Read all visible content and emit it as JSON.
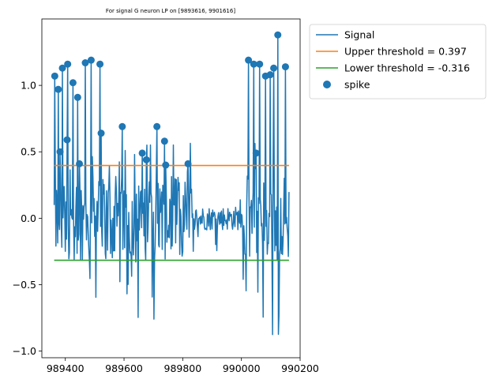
{
  "chart_data": {
    "type": "line",
    "title": "For signal G neuron LP on [9893616, 9901616]",
    "xlabel": "",
    "ylabel": "",
    "xlim": [
      989320,
      990200
    ],
    "ylim": [
      -1.05,
      1.5
    ],
    "x_ticks": [
      989400,
      989600,
      989800,
      990000,
      990200
    ],
    "y_ticks": [
      -1.0,
      -0.5,
      0.0,
      0.5,
      1.0
    ],
    "grid": false,
    "legend_position": "outside-top-right",
    "signal_range": [
      989362,
      990162
    ],
    "series": [
      {
        "name": "Signal",
        "kind": "line",
        "color": "#1f77b4"
      },
      {
        "name": "Upper threshold = 0.397",
        "kind": "hline",
        "y": 0.397,
        "color": "#ff7f0e"
      },
      {
        "name": "Lower threshold = -0.316",
        "kind": "hline",
        "y": -0.316,
        "color": "#2ca02c"
      },
      {
        "name": "spike",
        "kind": "scatter",
        "color": "#1f77b4",
        "points": [
          [
            989364,
            1.07
          ],
          [
            989376,
            0.97
          ],
          [
            989382,
            0.5
          ],
          [
            989390,
            1.13
          ],
          [
            989406,
            0.59
          ],
          [
            989408,
            1.16
          ],
          [
            989426,
            1.02
          ],
          [
            989442,
            0.91
          ],
          [
            989448,
            0.41
          ],
          [
            989468,
            1.17
          ],
          [
            989488,
            1.19
          ],
          [
            989518,
            1.16
          ],
          [
            989522,
            0.64
          ],
          [
            989594,
            0.69
          ],
          [
            989662,
            0.49
          ],
          [
            989676,
            0.44
          ],
          [
            989712,
            0.69
          ],
          [
            989738,
            0.58
          ],
          [
            989742,
            0.4
          ],
          [
            989818,
            0.41
          ],
          [
            990024,
            1.19
          ],
          [
            990042,
            1.16
          ],
          [
            990050,
            0.49
          ],
          [
            990062,
            1.16
          ],
          [
            990082,
            1.07
          ],
          [
            990098,
            1.08
          ],
          [
            990110,
            1.13
          ],
          [
            990124,
            1.38
          ],
          [
            990150,
            1.14
          ]
        ]
      }
    ]
  }
}
